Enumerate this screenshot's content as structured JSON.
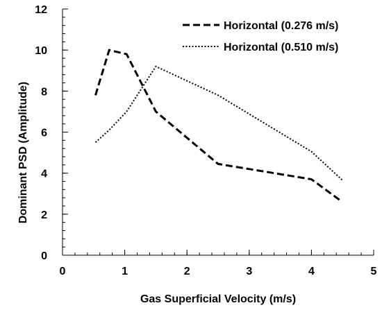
{
  "chart_data": {
    "type": "line",
    "xlabel": "Gas Superficial Velocity (m/s)",
    "ylabel": "Dominant PSD (Amplitude)",
    "xlim": [
      0,
      5
    ],
    "ylim": [
      0,
      12
    ],
    "x_ticks": [
      "0",
      "1",
      "2",
      "3",
      "4",
      "5"
    ],
    "y_ticks": [
      "0",
      "2",
      "4",
      "6",
      "8",
      "10",
      "12"
    ],
    "x_minor_step": 0.2,
    "y_minor_step": 0.4,
    "grid": false,
    "legend_position": "top-right",
    "series": [
      {
        "name": "Horizontal (0.276 m/s)",
        "style": "dashed",
        "color": "#000000",
        "x": [
          0.53,
          0.75,
          1.03,
          1.5,
          2.5,
          4.0,
          4.45
        ],
        "y": [
          7.8,
          10.0,
          9.8,
          7.0,
          4.45,
          3.7,
          2.7
        ]
      },
      {
        "name": "Horizontal (0.510 m/s)",
        "style": "dotted",
        "color": "#000000",
        "x": [
          0.53,
          0.75,
          1.03,
          1.5,
          2.5,
          4.0,
          4.5
        ],
        "y": [
          5.5,
          6.1,
          7.0,
          9.2,
          7.8,
          5.05,
          3.65
        ]
      }
    ]
  }
}
